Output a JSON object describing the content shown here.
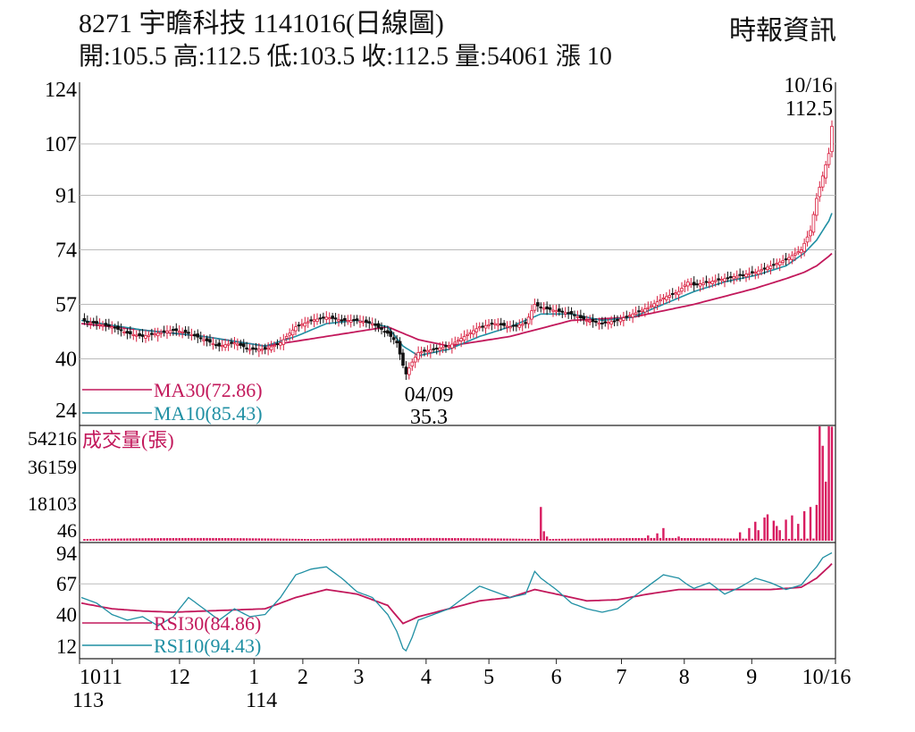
{
  "header": {
    "title": "8271  宇瞻科技 1141016(日線圖)",
    "ohlc": "開:105.5 高:112.5 低:103.5 收:112.5 量:54061 漲 10",
    "source": "時報資訊"
  },
  "chart_data": [
    {
      "type": "candlestick",
      "panel": "price",
      "y_ticks": [
        "124",
        "107",
        "91",
        "74",
        "57",
        "40",
        "24"
      ],
      "ylim": [
        24,
        124
      ],
      "x_ticks": [
        "10",
        "11",
        "12",
        "1",
        "2",
        "3",
        "4",
        "5",
        "6",
        "7",
        "8",
        "9",
        "10/16"
      ],
      "x_ticks_secondary": [
        "113",
        "114"
      ],
      "annotations": [
        {
          "date": "10/16",
          "value": "112.5"
        },
        {
          "date": "04/09",
          "value": "35.3"
        }
      ],
      "legend": [
        {
          "label": "MA30(72.86)",
          "color": "#c2185b"
        },
        {
          "label": "MA10(85.43)",
          "color": "#1f8fa3"
        }
      ],
      "close_points": [
        [
          0,
          52
        ],
        [
          5,
          51
        ],
        [
          10,
          50
        ],
        [
          15,
          48
        ],
        [
          20,
          47
        ],
        [
          25,
          48
        ],
        [
          30,
          49
        ],
        [
          35,
          48
        ],
        [
          40,
          46
        ],
        [
          45,
          44
        ],
        [
          50,
          45
        ],
        [
          55,
          43
        ],
        [
          60,
          43
        ],
        [
          65,
          45
        ],
        [
          70,
          50
        ],
        [
          75,
          52
        ],
        [
          80,
          53
        ],
        [
          85,
          52
        ],
        [
          90,
          52
        ],
        [
          95,
          51
        ],
        [
          100,
          48
        ],
        [
          103,
          45
        ],
        [
          105,
          38
        ],
        [
          106,
          35.3
        ],
        [
          108,
          39
        ],
        [
          110,
          42
        ],
        [
          115,
          43
        ],
        [
          120,
          44
        ],
        [
          125,
          47
        ],
        [
          130,
          50
        ],
        [
          135,
          51
        ],
        [
          140,
          50
        ],
        [
          145,
          51
        ],
        [
          148,
          57
        ],
        [
          150,
          56
        ],
        [
          155,
          55
        ],
        [
          160,
          54
        ],
        [
          165,
          52
        ],
        [
          170,
          51
        ],
        [
          175,
          52
        ],
        [
          180,
          54
        ],
        [
          185,
          56
        ],
        [
          190,
          59
        ],
        [
          195,
          61
        ],
        [
          198,
          64
        ],
        [
          200,
          63
        ],
        [
          205,
          64
        ],
        [
          210,
          65
        ],
        [
          215,
          66
        ],
        [
          220,
          67
        ],
        [
          225,
          69
        ],
        [
          230,
          71
        ],
        [
          235,
          74
        ],
        [
          238,
          80
        ],
        [
          240,
          90
        ],
        [
          242,
          97
        ],
        [
          244,
          104
        ],
        [
          245,
          112.5
        ]
      ],
      "ma10_points": [
        [
          0,
          52
        ],
        [
          20,
          49
        ],
        [
          40,
          47
        ],
        [
          60,
          44
        ],
        [
          70,
          47
        ],
        [
          80,
          51
        ],
        [
          90,
          52
        ],
        [
          100,
          50
        ],
        [
          105,
          44
        ],
        [
          110,
          41
        ],
        [
          120,
          43
        ],
        [
          130,
          47
        ],
        [
          140,
          50
        ],
        [
          150,
          54
        ],
        [
          160,
          54
        ],
        [
          170,
          52
        ],
        [
          180,
          53
        ],
        [
          190,
          57
        ],
        [
          200,
          61
        ],
        [
          210,
          64
        ],
        [
          220,
          66
        ],
        [
          230,
          69
        ],
        [
          236,
          73
        ],
        [
          240,
          77
        ],
        [
          244,
          83
        ],
        [
          245,
          85.43
        ]
      ],
      "ma30_points": [
        [
          0,
          51
        ],
        [
          20,
          49
        ],
        [
          40,
          47
        ],
        [
          60,
          44
        ],
        [
          80,
          47
        ],
        [
          100,
          50
        ],
        [
          110,
          46
        ],
        [
          120,
          44
        ],
        [
          140,
          47
        ],
        [
          160,
          52
        ],
        [
          180,
          53
        ],
        [
          200,
          57
        ],
        [
          220,
          62
        ],
        [
          230,
          65
        ],
        [
          236,
          67
        ],
        [
          240,
          69
        ],
        [
          244,
          72
        ],
        [
          245,
          72.86
        ]
      ]
    },
    {
      "type": "bar",
      "panel": "volume",
      "label": "成交量(張)",
      "y_ticks": [
        "54216",
        "36159",
        "18103",
        "46"
      ],
      "ylim": [
        0,
        54216
      ],
      "spikes": [
        [
          150,
          16000
        ],
        [
          151,
          4500
        ],
        [
          152,
          2000
        ],
        [
          185,
          2500
        ],
        [
          188,
          3500
        ],
        [
          190,
          6000
        ],
        [
          195,
          2000
        ],
        [
          215,
          4000
        ],
        [
          218,
          6000
        ],
        [
          220,
          9000
        ],
        [
          221,
          5000
        ],
        [
          223,
          11000
        ],
        [
          224,
          12500
        ],
        [
          226,
          9500
        ],
        [
          227,
          7000
        ],
        [
          228,
          5000
        ],
        [
          230,
          10000
        ],
        [
          232,
          12000
        ],
        [
          234,
          8000
        ],
        [
          236,
          14000
        ],
        [
          238,
          16000
        ],
        [
          240,
          17000
        ],
        [
          241,
          54216
        ],
        [
          242,
          45000
        ],
        [
          243,
          28000
        ],
        [
          244,
          54216
        ],
        [
          245,
          54061
        ]
      ],
      "baseline": 800
    },
    {
      "type": "line",
      "panel": "rsi",
      "y_ticks": [
        "94",
        "67",
        "40",
        "12"
      ],
      "ylim": [
        0,
        100
      ],
      "legend": [
        {
          "label": "RSI30(84.86)",
          "color": "#c2185b"
        },
        {
          "label": "RSI10(94.43)",
          "color": "#1f8fa3"
        }
      ],
      "rsi10_points": [
        [
          0,
          55
        ],
        [
          5,
          50
        ],
        [
          10,
          40
        ],
        [
          15,
          35
        ],
        [
          20,
          38
        ],
        [
          25,
          30
        ],
        [
          30,
          38
        ],
        [
          35,
          55
        ],
        [
          40,
          45
        ],
        [
          45,
          35
        ],
        [
          50,
          45
        ],
        [
          55,
          38
        ],
        [
          60,
          40
        ],
        [
          65,
          55
        ],
        [
          70,
          75
        ],
        [
          75,
          80
        ],
        [
          80,
          82
        ],
        [
          85,
          72
        ],
        [
          90,
          60
        ],
        [
          95,
          55
        ],
        [
          100,
          40
        ],
        [
          103,
          25
        ],
        [
          105,
          10
        ],
        [
          106,
          8
        ],
        [
          108,
          20
        ],
        [
          110,
          35
        ],
        [
          115,
          40
        ],
        [
          120,
          45
        ],
        [
          125,
          55
        ],
        [
          130,
          65
        ],
        [
          135,
          60
        ],
        [
          140,
          55
        ],
        [
          145,
          58
        ],
        [
          148,
          78
        ],
        [
          150,
          72
        ],
        [
          155,
          62
        ],
        [
          160,
          50
        ],
        [
          165,
          45
        ],
        [
          170,
          42
        ],
        [
          175,
          45
        ],
        [
          180,
          55
        ],
        [
          185,
          65
        ],
        [
          190,
          75
        ],
        [
          195,
          72
        ],
        [
          198,
          66
        ],
        [
          200,
          63
        ],
        [
          205,
          68
        ],
        [
          210,
          58
        ],
        [
          215,
          64
        ],
        [
          220,
          72
        ],
        [
          225,
          68
        ],
        [
          230,
          62
        ],
        [
          235,
          66
        ],
        [
          238,
          76
        ],
        [
          240,
          82
        ],
        [
          242,
          90
        ],
        [
          244,
          93
        ],
        [
          245,
          94.43
        ]
      ],
      "rsi30_points": [
        [
          0,
          50
        ],
        [
          10,
          45
        ],
        [
          20,
          43
        ],
        [
          30,
          42
        ],
        [
          40,
          43
        ],
        [
          50,
          44
        ],
        [
          60,
          45
        ],
        [
          70,
          55
        ],
        [
          80,
          62
        ],
        [
          90,
          58
        ],
        [
          100,
          48
        ],
        [
          105,
          32
        ],
        [
          110,
          38
        ],
        [
          120,
          45
        ],
        [
          130,
          52
        ],
        [
          140,
          55
        ],
        [
          148,
          62
        ],
        [
          155,
          58
        ],
        [
          165,
          52
        ],
        [
          175,
          53
        ],
        [
          185,
          58
        ],
        [
          195,
          62
        ],
        [
          205,
          62
        ],
        [
          215,
          62
        ],
        [
          225,
          62
        ],
        [
          235,
          64
        ],
        [
          240,
          72
        ],
        [
          244,
          82
        ],
        [
          245,
          84.86
        ]
      ]
    }
  ]
}
